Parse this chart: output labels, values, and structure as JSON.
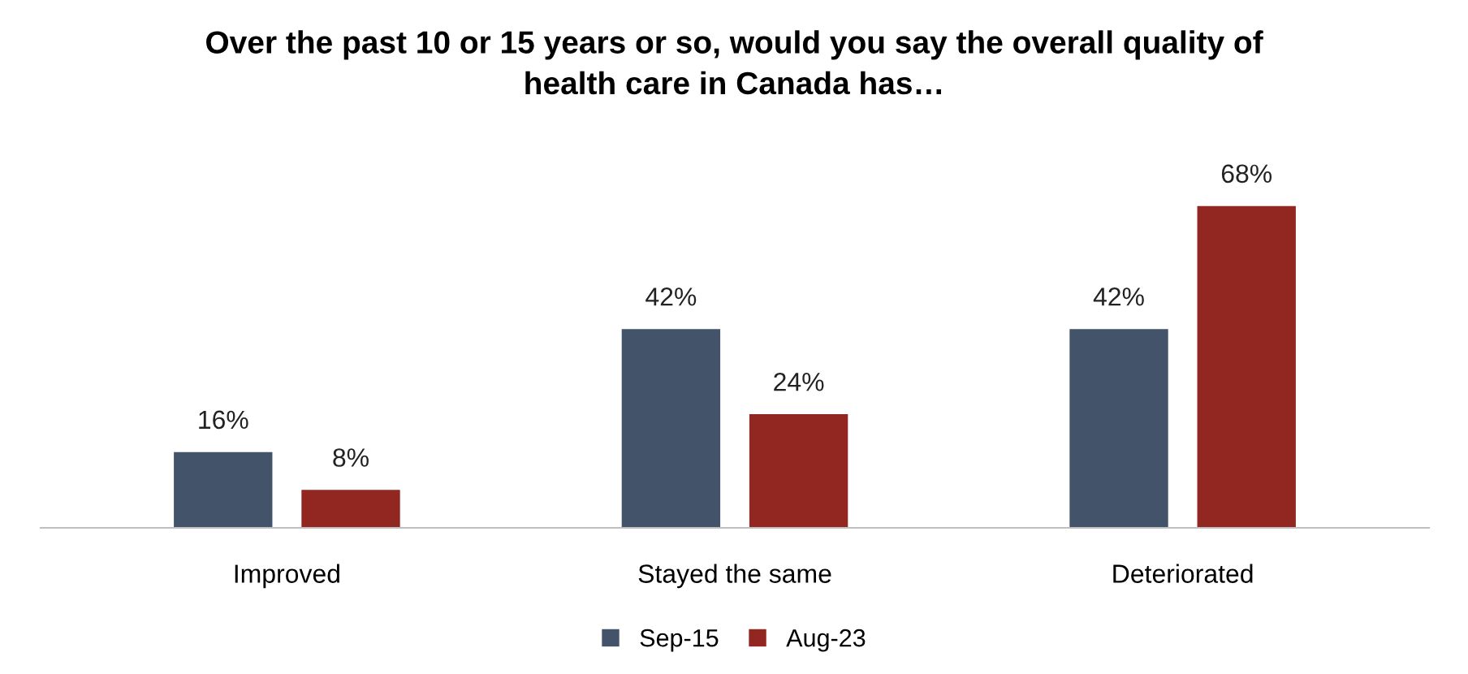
{
  "chart_data": {
    "type": "bar",
    "title": "Over the past 10 or 15 years or so, would you say the overall quality of\nhealth care in Canada has…",
    "categories": [
      "Improved",
      "Stayed the same",
      "Deteriorated"
    ],
    "series": [
      {
        "name": "Sep-15",
        "color": "#435369",
        "values": [
          16,
          42,
          42
        ],
        "value_labels": [
          "16%",
          "42%",
          "42%"
        ]
      },
      {
        "name": "Aug-23",
        "color": "#922620",
        "values": [
          8,
          24,
          68
        ],
        "value_labels": [
          "8%",
          "24%",
          "68%"
        ]
      }
    ],
    "legend": "bottom",
    "grid": false
  }
}
